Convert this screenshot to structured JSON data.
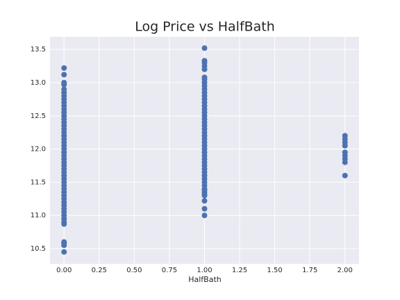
{
  "chart_data": {
    "type": "scatter",
    "title": "Log Price vs HalfBath",
    "x_label": "HalfBath",
    "color": "#4c72b0",
    "grid": true,
    "xlim": [
      -0.1,
      2.1
    ],
    "ylim": [
      10.27,
      13.69
    ],
    "xticks": [
      {
        "value": 0,
        "label": "0.00"
      },
      {
        "value": 0.25,
        "label": "0.25"
      },
      {
        "value": 0.5,
        "label": "0.50"
      },
      {
        "value": 0.75,
        "label": "0.75"
      },
      {
        "value": 1,
        "label": "1.00"
      },
      {
        "value": 1.25,
        "label": "1.25"
      },
      {
        "value": 1.5,
        "label": "1.50"
      },
      {
        "value": 1.75,
        "label": "1.75"
      },
      {
        "value": 2,
        "label": "2.00"
      }
    ],
    "yticks": [
      10.5,
      {
        "value": 11,
        "label": "11.0"
      },
      11.5,
      {
        "value": 12,
        "label": "12.0"
      },
      12.5,
      {
        "value": 13,
        "label": "13.0"
      },
      13.5
    ],
    "x": [
      0,
      0,
      0,
      0,
      0,
      0,
      0,
      0,
      0,
      0,
      0,
      0,
      0,
      0,
      0,
      0,
      0,
      0,
      0,
      0,
      0,
      0,
      0,
      0,
      0,
      0,
      0,
      0,
      0,
      0,
      0,
      0,
      0,
      0,
      0,
      0,
      0,
      0,
      0,
      0,
      0,
      0,
      0,
      0,
      0,
      0,
      0,
      0,
      0,
      0,
      1,
      1,
      1,
      1,
      1,
      1,
      1,
      1,
      1,
      1,
      1,
      1,
      1,
      1,
      1,
      1,
      1,
      1,
      1,
      1,
      1,
      1,
      1,
      1,
      1,
      1,
      1,
      1,
      1,
      1,
      1,
      1,
      1,
      1,
      1,
      1,
      1,
      1,
      1,
      1,
      1,
      1,
      1,
      1,
      1,
      1,
      1,
      2,
      2,
      2,
      2,
      2,
      2,
      2,
      2,
      2
    ],
    "values": [
      10.45,
      10.55,
      10.58,
      10.6,
      10.87,
      10.9,
      10.95,
      11.0,
      11.05,
      11.1,
      11.15,
      11.2,
      11.25,
      11.3,
      11.35,
      11.4,
      11.45,
      11.5,
      11.55,
      11.6,
      11.65,
      11.7,
      11.75,
      11.8,
      11.85,
      11.9,
      11.95,
      12.0,
      12.05,
      12.1,
      12.15,
      12.2,
      12.25,
      12.3,
      12.35,
      12.4,
      12.45,
      12.5,
      12.55,
      12.6,
      12.65,
      12.7,
      12.75,
      12.8,
      12.85,
      12.9,
      12.97,
      13.0,
      13.12,
      13.22,
      11.0,
      11.1,
      11.22,
      11.32,
      11.35,
      11.4,
      11.45,
      11.5,
      11.55,
      11.6,
      11.65,
      11.7,
      11.75,
      11.8,
      11.85,
      11.9,
      11.95,
      12.0,
      12.05,
      12.1,
      12.15,
      12.2,
      12.25,
      12.3,
      12.35,
      12.4,
      12.45,
      12.5,
      12.55,
      12.6,
      12.65,
      12.7,
      12.75,
      12.8,
      12.85,
      12.9,
      12.95,
      13.0,
      13.05,
      13.08,
      13.2,
      13.25,
      13.3,
      13.33,
      13.52,
      11.3,
      11.38,
      11.6,
      11.8,
      11.85,
      11.9,
      11.95,
      12.05,
      12.1,
      12.15,
      12.2
    ]
  }
}
